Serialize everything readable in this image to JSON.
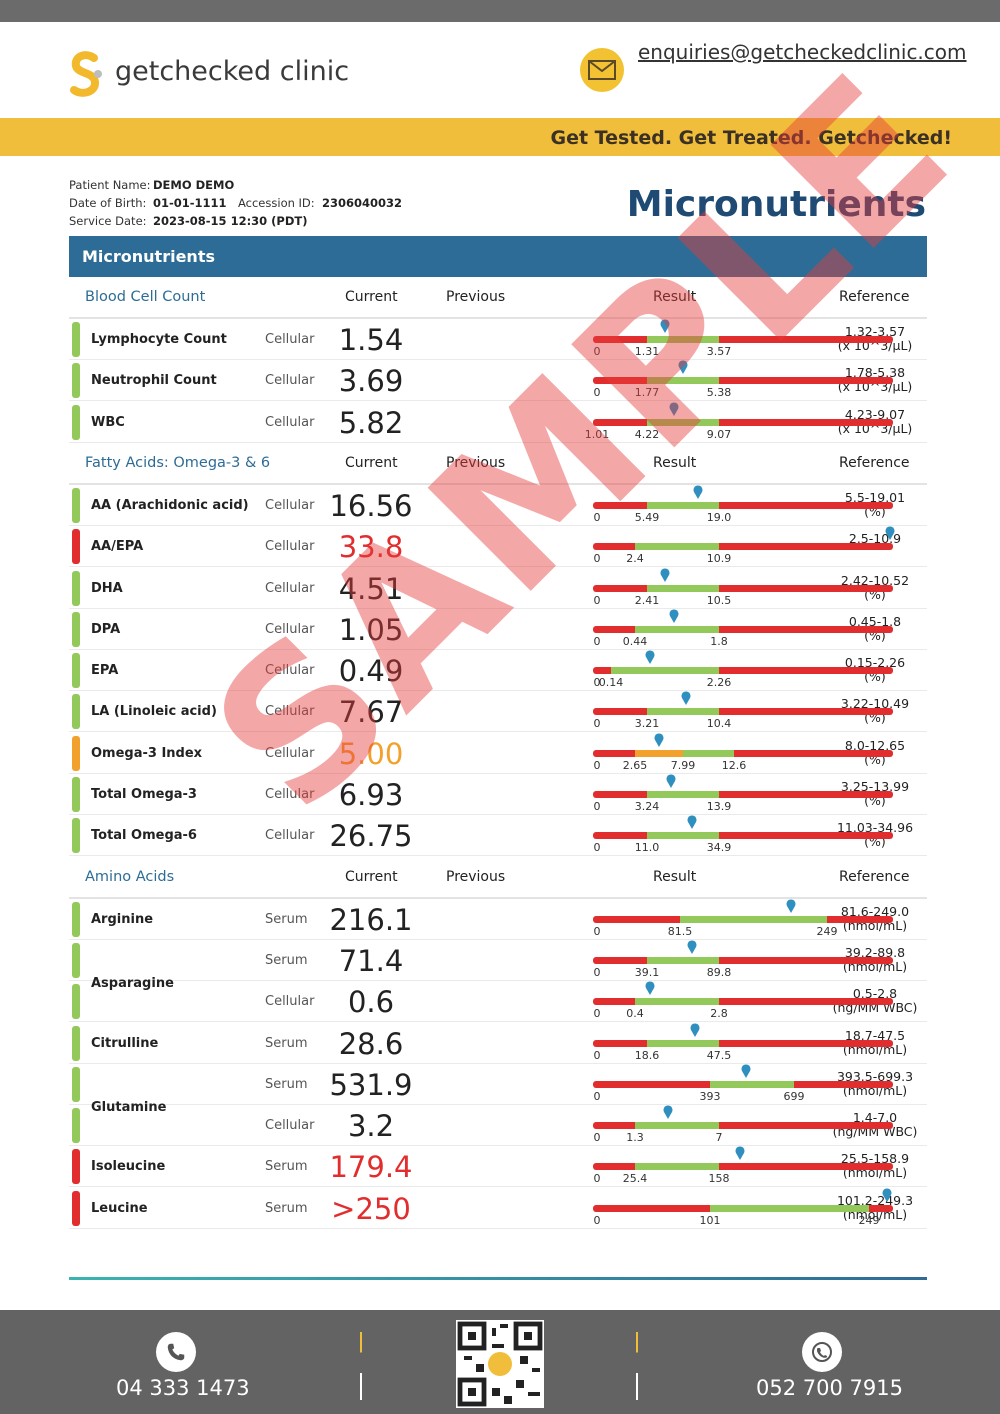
{
  "brand": {
    "name": "getchecked clinic",
    "email": "enquiries@getcheckedclinic.com",
    "tagline": "Get Tested. Get Treated. Getchecked!"
  },
  "patient": {
    "name_label": "Patient Name:",
    "name": "DEMO DEMO",
    "dob_label": "Date of Birth:",
    "dob": "01-01-1111",
    "accession_label": "Accession ID:",
    "accession": "2306040032",
    "service_label": "Service Date:",
    "service": "2023-08-15 12:30 (PDT)"
  },
  "title": "Micronutrients",
  "banner": "Micronutrients",
  "watermark": "SAMPLE",
  "columns": {
    "current": "Current",
    "previous": "Previous",
    "result": "Result",
    "reference": "Reference"
  },
  "colors": {
    "red": "#e12d2d",
    "green": "#93c85b",
    "orange": "#f2a22c",
    "marker": "#2f8fbf"
  },
  "sections": [
    {
      "title": "Blood Cell Count",
      "rows": [
        {
          "name": "Lymphocyte Count",
          "type": "Cellular",
          "value": "1.54",
          "status": "normal",
          "ref1": "1.32-3.57",
          "ref2": "(x 10^3/μL)",
          "bar": {
            "g0": 0.18,
            "g1": 0.42,
            "marker": 0.24,
            "labels": [
              "0",
              "1.31",
              "3.57"
            ]
          }
        },
        {
          "name": "Neutrophil Count",
          "type": "Cellular",
          "value": "3.69",
          "status": "normal",
          "ref1": "1.78-5.38",
          "ref2": "(x 10^3/μL)",
          "bar": {
            "g0": 0.18,
            "g1": 0.42,
            "marker": 0.3,
            "labels": [
              "0",
              "1.77",
              "5.38"
            ]
          }
        },
        {
          "name": "WBC",
          "type": "Cellular",
          "value": "5.82",
          "status": "normal",
          "ref1": "4.23-9.07",
          "ref2": "(x 10^3/μL)",
          "bar": {
            "g0": 0.18,
            "g1": 0.42,
            "marker": 0.27,
            "labels": [
              "1.01",
              "4.22",
              "9.07"
            ]
          }
        }
      ]
    },
    {
      "title": "Fatty Acids: Omega-3 & 6",
      "rows": [
        {
          "name": "AA (Arachidonic acid)",
          "type": "Cellular",
          "value": "16.56",
          "status": "normal",
          "ref1": "5.5-19.01",
          "ref2": "(%)",
          "bar": {
            "g0": 0.18,
            "g1": 0.42,
            "marker": 0.35,
            "labels": [
              "0",
              "5.49",
              "19.0"
            ]
          }
        },
        {
          "name": "AA/EPA",
          "type": "Cellular",
          "value": "33.8",
          "status": "high",
          "ref1": "2.5-10.9",
          "ref2": "",
          "bar": {
            "g0": 0.14,
            "g1": 0.42,
            "marker": 0.99,
            "labels": [
              "0",
              "2.4",
              "10.9"
            ]
          }
        },
        {
          "name": "DHA",
          "type": "Cellular",
          "value": "4.51",
          "status": "normal",
          "ref1": "2.42-10.52",
          "ref2": "(%)",
          "bar": {
            "g0": 0.18,
            "g1": 0.42,
            "marker": 0.24,
            "labels": [
              "0",
              "2.41",
              "10.5"
            ]
          }
        },
        {
          "name": "DPA",
          "type": "Cellular",
          "value": "1.05",
          "status": "normal",
          "ref1": "0.45-1.8",
          "ref2": "(%)",
          "bar": {
            "g0": 0.14,
            "g1": 0.42,
            "marker": 0.27,
            "labels": [
              "0",
              "0.44",
              "1.8"
            ]
          }
        },
        {
          "name": "EPA",
          "type": "Cellular",
          "value": "0.49",
          "status": "normal",
          "ref1": "0.15-2.26",
          "ref2": "(%)",
          "bar": {
            "g0": 0.06,
            "g1": 0.42,
            "marker": 0.19,
            "labels": [
              "0",
              "0.14",
              "2.26"
            ]
          }
        },
        {
          "name": "LA (Linoleic acid)",
          "type": "Cellular",
          "value": "7.67",
          "status": "normal",
          "ref1": "3.22-10.49",
          "ref2": "(%)",
          "bar": {
            "g0": 0.18,
            "g1": 0.42,
            "marker": 0.31,
            "labels": [
              "0",
              "3.21",
              "10.4"
            ]
          }
        },
        {
          "name": "Omega-3 Index",
          "type": "Cellular",
          "value": "5.00",
          "status": "borderline",
          "ref1": "8.0-12.65",
          "ref2": "(%)",
          "bar": {
            "g0": 0.14,
            "g1": 0.47,
            "orange0": 0.14,
            "orange1": 0.3,
            "marker": 0.22,
            "labels": [
              "0",
              "2.65",
              "7.99",
              "12.6"
            ]
          }
        },
        {
          "name": "Total Omega-3",
          "type": "Cellular",
          "value": "6.93",
          "status": "normal",
          "ref1": "3.25-13.99",
          "ref2": "(%)",
          "bar": {
            "g0": 0.18,
            "g1": 0.42,
            "marker": 0.26,
            "labels": [
              "0",
              "3.24",
              "13.9"
            ]
          }
        },
        {
          "name": "Total Omega-6",
          "type": "Cellular",
          "value": "26.75",
          "status": "normal",
          "ref1": "11.03-34.96",
          "ref2": "(%)",
          "bar": {
            "g0": 0.18,
            "g1": 0.42,
            "marker": 0.33,
            "labels": [
              "0",
              "11.0",
              "34.9"
            ]
          }
        }
      ]
    },
    {
      "title": "Amino Acids",
      "rows": [
        {
          "name": "Arginine",
          "type": "Serum",
          "value": "216.1",
          "status": "normal",
          "ref1": "81.6-249.0",
          "ref2": "(nmol/mL)",
          "bar": {
            "g0": 0.29,
            "g1": 0.78,
            "marker": 0.66,
            "labels": [
              "0",
              "81.5",
              "249"
            ]
          }
        },
        {
          "name": "Asparagine",
          "type": "Serum",
          "value": "71.4",
          "status": "normal",
          "ref1": "39.2-89.8",
          "ref2": "(nmol/mL)",
          "group": "start",
          "bar": {
            "g0": 0.18,
            "g1": 0.42,
            "marker": 0.33,
            "labels": [
              "0",
              "39.1",
              "89.8"
            ]
          }
        },
        {
          "name": "",
          "type": "Cellular",
          "value": "0.6",
          "status": "normal",
          "ref1": "0.5-2.8",
          "ref2": "(ng/MM WBC)",
          "group": "end",
          "bar": {
            "g0": 0.14,
            "g1": 0.42,
            "marker": 0.19,
            "labels": [
              "0",
              "0.4",
              "2.8"
            ]
          }
        },
        {
          "name": "Citrulline",
          "type": "Serum",
          "value": "28.6",
          "status": "normal",
          "ref1": "18.7-47.5",
          "ref2": "(nmol/mL)",
          "bar": {
            "g0": 0.18,
            "g1": 0.42,
            "marker": 0.34,
            "labels": [
              "0",
              "18.6",
              "47.5"
            ]
          }
        },
        {
          "name": "Glutamine",
          "type": "Serum",
          "value": "531.9",
          "status": "normal",
          "ref1": "393.5-699.3",
          "ref2": "(nmol/mL)",
          "group": "start",
          "bar": {
            "g0": 0.39,
            "g1": 0.67,
            "marker": 0.51,
            "labels": [
              "0",
              "393",
              "699"
            ]
          }
        },
        {
          "name": "",
          "type": "Cellular",
          "value": "3.2",
          "status": "normal",
          "ref1": "1.4-7.0",
          "ref2": "(ng/MM WBC)",
          "group": "end",
          "bar": {
            "g0": 0.14,
            "g1": 0.42,
            "marker": 0.25,
            "labels": [
              "0",
              "1.3",
              "7"
            ]
          }
        },
        {
          "name": "Isoleucine",
          "type": "Serum",
          "value": "179.4",
          "status": "high",
          "ref1": "25.5-158.9",
          "ref2": "(nmol/mL)",
          "bar": {
            "g0": 0.14,
            "g1": 0.42,
            "marker": 0.49,
            "labels": [
              "0",
              "25.4",
              "158"
            ]
          }
        },
        {
          "name": "Leucine",
          "type": "Serum",
          "value": ">250",
          "status": "high",
          "ref1": "101.2-249.3",
          "ref2": "(nmol/mL)",
          "bar": {
            "g0": 0.39,
            "g1": 0.92,
            "marker": 0.98,
            "labels": [
              "0",
              "101",
              "249"
            ]
          }
        }
      ]
    }
  ],
  "footer": {
    "phone1": "04 333 1473",
    "phone2": "052 700 7915"
  }
}
